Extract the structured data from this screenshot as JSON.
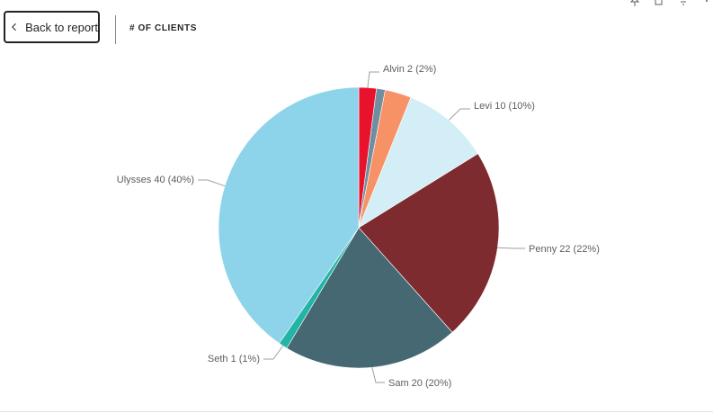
{
  "nav": {
    "back_label": "Back to report",
    "back_icon": "chevron-left-icon"
  },
  "visual": {
    "title": "# OF CLIENTS",
    "header_icons": [
      "pin-icon",
      "copy-icon",
      "filter-icon",
      "more-options-icon"
    ]
  },
  "chart_data": {
    "type": "pie",
    "title": "# OF CLIENTS",
    "slices": [
      {
        "label": "Alvin",
        "value": 2,
        "percent": "2%",
        "color": "#E8122D",
        "labeled": true
      },
      {
        "label": "",
        "value": 1,
        "percent": "",
        "color": "#6F8FA0",
        "labeled": false
      },
      {
        "label": "",
        "value": 3,
        "percent": "",
        "color": "#F79266",
        "labeled": false
      },
      {
        "label": "Levi",
        "value": 10,
        "percent": "10%",
        "color": "#D3EEF6",
        "labeled": true
      },
      {
        "label": "Penny",
        "value": 22,
        "percent": "22%",
        "color": "#7D2B2E",
        "labeled": true
      },
      {
        "label": "Sam",
        "value": 20,
        "percent": "20%",
        "color": "#466872",
        "labeled": true
      },
      {
        "label": "Seth",
        "value": 1,
        "percent": "1%",
        "color": "#22B5A5",
        "labeled": true
      },
      {
        "label": "Ulysses",
        "value": 40,
        "percent": "40%",
        "color": "#8DD3EA",
        "labeled": true
      }
    ]
  }
}
